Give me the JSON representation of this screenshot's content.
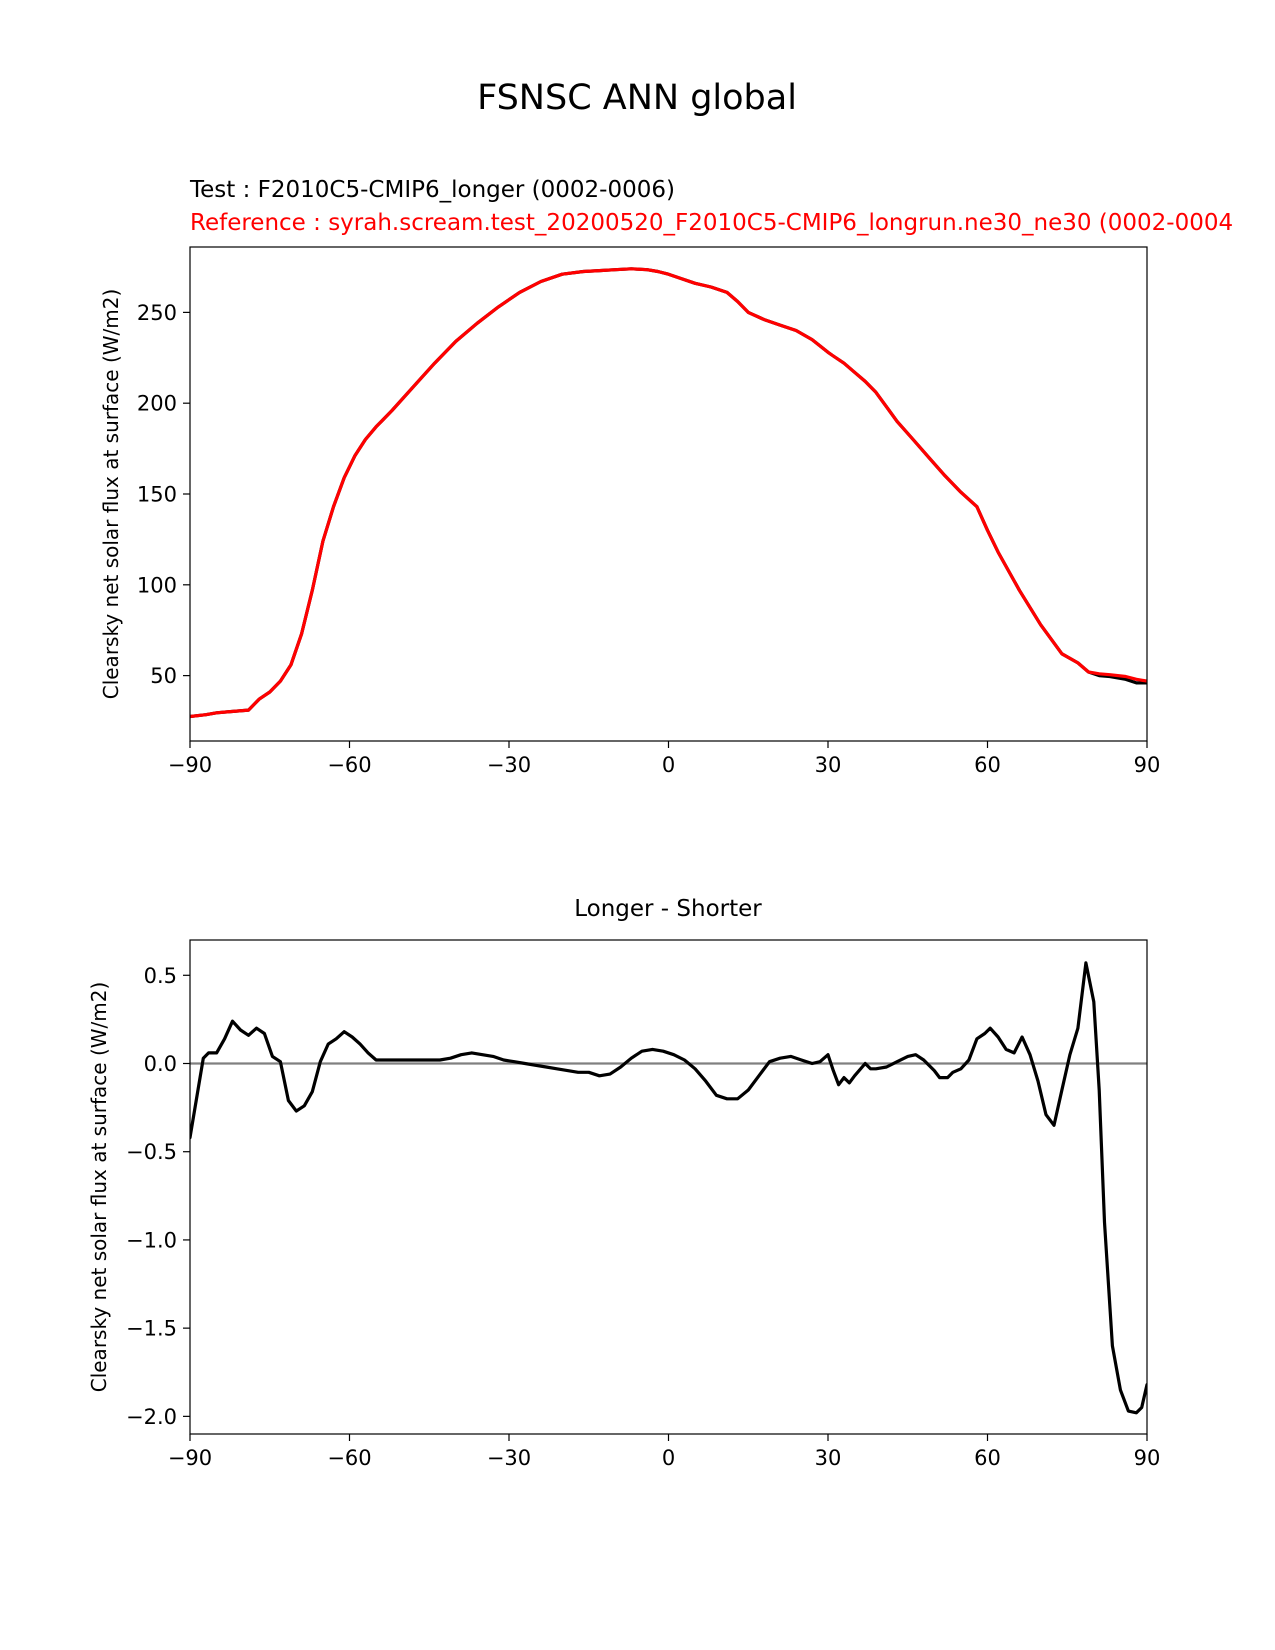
{
  "figure": {
    "suptitle": "FSNSC ANN global",
    "test_label": "Test : F2010C5-CMIP6_longer (0002-0006)",
    "reference_label": "Reference : syrah.scream.test_20200520_F2010C5-CMIP6_longrun.ne30_ne30 (0002-0004"
  },
  "colors": {
    "test": "#000000",
    "reference": "#ff0000",
    "zero_line": "#808080"
  },
  "chart_data": [
    {
      "type": "line",
      "title": "",
      "xlabel": "",
      "ylabel": "Clearsky net solar flux at surface (W/m2)",
      "xlim": [
        -90,
        90
      ],
      "ylim": [
        14,
        286
      ],
      "xticks": [
        -90,
        -60,
        -30,
        0,
        30,
        60,
        90
      ],
      "xtick_labels": [
        "−90",
        "−60",
        "−30",
        "0",
        "30",
        "60",
        "90"
      ],
      "yticks": [
        50,
        100,
        150,
        200,
        250
      ],
      "ytick_labels": [
        "50",
        "100",
        "150",
        "200",
        "250"
      ],
      "grid": false,
      "x": [
        -90,
        -87,
        -85,
        -83,
        -81,
        -79,
        -77,
        -75,
        -73,
        -71,
        -69,
        -67,
        -65,
        -63,
        -61,
        -59,
        -57,
        -55,
        -52,
        -48,
        -44,
        -40,
        -36,
        -32,
        -28,
        -24,
        -20,
        -16,
        -13,
        -10,
        -7,
        -4,
        -2,
        0,
        2,
        5,
        8,
        11,
        13,
        15,
        18,
        21,
        24,
        27,
        30,
        31,
        33,
        35,
        37,
        39,
        41,
        43,
        46,
        49,
        52,
        55,
        58,
        60,
        62,
        66,
        70,
        74,
        77,
        79,
        81,
        83,
        86,
        88,
        90
      ],
      "series": [
        {
          "name": "Test",
          "color": "#000000",
          "values": [
            27.5,
            28.5,
            29.5,
            30,
            30.5,
            31,
            37,
            41,
            47,
            56,
            73,
            97,
            124,
            143,
            159,
            171,
            180,
            187,
            196,
            209,
            222,
            234,
            244,
            253,
            261,
            267,
            271,
            272.5,
            273,
            273.5,
            274,
            273.5,
            272.5,
            271,
            269,
            266,
            264,
            261,
            256,
            250,
            246,
            243,
            240,
            235,
            228,
            226,
            222,
            217,
            212,
            206,
            198,
            190,
            180,
            170,
            160,
            151,
            143,
            130,
            118,
            97,
            78,
            62,
            57,
            52,
            50,
            49.5,
            48,
            46,
            46
          ]
        },
        {
          "name": "Reference",
          "color": "#ff0000",
          "values": [
            27.5,
            28.5,
            29.5,
            30,
            30.5,
            31,
            37,
            41,
            47,
            56,
            73,
            97,
            124,
            143,
            159,
            171,
            180,
            187,
            196,
            209,
            222,
            234,
            244,
            253,
            261,
            267,
            271,
            272.5,
            273,
            273.5,
            274,
            273.5,
            272.5,
            271,
            269,
            266,
            264,
            261,
            256,
            250,
            246,
            243,
            240,
            235,
            228,
            226,
            222,
            217,
            212,
            206,
            198,
            190,
            180,
            170,
            160,
            151,
            143,
            130,
            118,
            97,
            78,
            62,
            57,
            52,
            51,
            50.5,
            49.5,
            48,
            47
          ]
        }
      ]
    },
    {
      "type": "line",
      "title": "Longer - Shorter",
      "xlabel": "",
      "ylabel": "Clearsky net solar flux at surface (W/m2)",
      "xlim": [
        -90,
        90
      ],
      "ylim": [
        -2.1,
        0.7
      ],
      "xticks": [
        -90,
        -60,
        -30,
        0,
        30,
        60,
        90
      ],
      "xtick_labels": [
        "−90",
        "−60",
        "−30",
        "0",
        "30",
        "60",
        "90"
      ],
      "yticks": [
        -2.0,
        -1.5,
        -1.0,
        -0.5,
        0.0,
        0.5
      ],
      "ytick_labels": [
        "−2.0",
        "−1.5",
        "−1.0",
        "−0.5",
        "0.0",
        "0.5"
      ],
      "grid": false,
      "hline": 0.0,
      "x": [
        -90,
        -87.5,
        -86.5,
        -85,
        -83.5,
        -82,
        -80.5,
        -79,
        -77.5,
        -76,
        -74.5,
        -73,
        -71.5,
        -70,
        -68.5,
        -67,
        -65.5,
        -64,
        -62.5,
        -61,
        -59.5,
        -58,
        -56.5,
        -55,
        -52,
        -50,
        -47,
        -45,
        -43,
        -41,
        -39,
        -37,
        -35,
        -33,
        -31,
        -29,
        -27,
        -25,
        -23,
        -21,
        -19,
        -17,
        -15,
        -13,
        -11,
        -9,
        -7,
        -5,
        -3,
        -1,
        1,
        3,
        5,
        7,
        9,
        11,
        13,
        15,
        17,
        19,
        21,
        23,
        25,
        27,
        28.5,
        30,
        31,
        32,
        33,
        34,
        35,
        37,
        38,
        39,
        41,
        43,
        45,
        46.5,
        48,
        50,
        51,
        52.5,
        53.5,
        55,
        56.5,
        58,
        59.5,
        60.5,
        62,
        63.5,
        65,
        66.5,
        68,
        69.5,
        71,
        72.5,
        74,
        75.5,
        77,
        78.5,
        80,
        81,
        82,
        83.5,
        85,
        86.5,
        88,
        89,
        90
      ],
      "series": [
        {
          "name": "",
          "color": "#000000",
          "values": [
            -0.42,
            0.03,
            0.06,
            0.06,
            0.14,
            0.24,
            0.19,
            0.16,
            0.2,
            0.17,
            0.04,
            0.01,
            -0.21,
            -0.27,
            -0.24,
            -0.16,
            0.01,
            0.11,
            0.14,
            0.18,
            0.15,
            0.11,
            0.06,
            0.02,
            0.02,
            0.02,
            0.02,
            0.02,
            0.02,
            0.03,
            0.05,
            0.06,
            0.05,
            0.04,
            0.02,
            0.01,
            0.0,
            -0.01,
            -0.02,
            -0.03,
            -0.04,
            -0.05,
            -0.05,
            -0.07,
            -0.06,
            -0.02,
            0.03,
            0.07,
            0.08,
            0.07,
            0.05,
            0.02,
            -0.03,
            -0.1,
            -0.18,
            -0.2,
            -0.2,
            -0.15,
            -0.07,
            0.01,
            0.03,
            0.04,
            0.02,
            0.0,
            0.01,
            0.05,
            -0.04,
            -0.12,
            -0.08,
            -0.11,
            -0.07,
            0.0,
            -0.03,
            -0.03,
            -0.02,
            0.01,
            0.04,
            0.05,
            0.02,
            -0.04,
            -0.08,
            -0.08,
            -0.05,
            -0.03,
            0.02,
            0.14,
            0.17,
            0.2,
            0.15,
            0.08,
            0.06,
            0.15,
            0.05,
            -0.1,
            -0.29,
            -0.35,
            -0.15,
            0.05,
            0.2,
            0.57,
            0.35,
            -0.15,
            -0.9,
            -1.6,
            -1.85,
            -1.97,
            -1.98,
            -1.95,
            -1.82
          ]
        }
      ]
    }
  ]
}
